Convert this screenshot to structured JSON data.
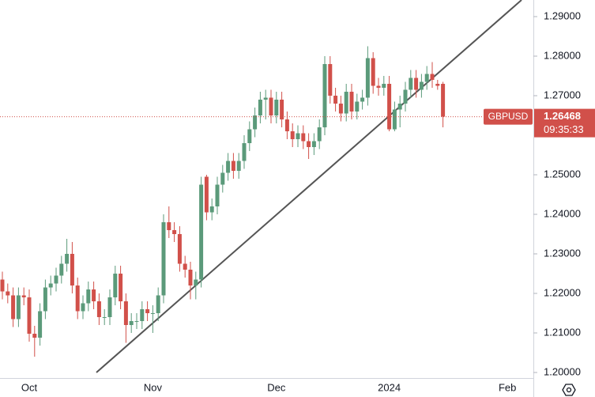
{
  "chart_data": {
    "type": "candlestick",
    "symbol": "GBPUSD",
    "last_price": 1.26468,
    "countdown": "09:35:33",
    "up_color": "#5b9a7a",
    "down_color": "#d1504a",
    "categories": [
      null,
      null,
      null,
      null,
      null,
      "Oct",
      null,
      null,
      null,
      null,
      null,
      null,
      null,
      null,
      null,
      null,
      null,
      null,
      null,
      null,
      null,
      null,
      null,
      null,
      null,
      null,
      null,
      null,
      "Nov",
      null,
      null,
      null,
      null,
      null,
      null,
      null,
      null,
      null,
      null,
      null,
      null,
      null,
      null,
      null,
      null,
      null,
      null,
      null,
      null,
      null,
      null,
      "Dec",
      null,
      null,
      null,
      null,
      null,
      null,
      null,
      null,
      null,
      null,
      null,
      null,
      null,
      null,
      null,
      null,
      null,
      null,
      null,
      null,
      "2024",
      null,
      null,
      null,
      null,
      null,
      null,
      null,
      null,
      null,
      null,
      null,
      null,
      null,
      null,
      null,
      null,
      null,
      null,
      null,
      null,
      null,
      "Feb"
    ],
    "open": [
      1.2235,
      1.2205,
      1.2195,
      1.2135,
      1.2195,
      1.219,
      1.2098,
      1.2088,
      1.2155,
      1.2215,
      1.2225,
      1.2245,
      1.2275,
      1.23,
      1.222,
      1.2155,
      1.2175,
      1.221,
      1.218,
      1.214,
      1.214,
      1.219,
      1.225,
      1.218,
      1.212,
      1.213,
      1.213,
      1.216,
      1.215,
      1.215,
      1.2195,
      1.238,
      1.236,
      1.235,
      1.2275,
      1.226,
      1.222,
      1.2235,
      1.2495,
      1.2405,
      1.242,
      1.2475,
      1.2505,
      1.2535,
      1.251,
      1.2535,
      1.258,
      1.2615,
      1.265,
      1.269,
      1.2695,
      1.265,
      1.269,
      1.264,
      1.261,
      1.259,
      1.2605,
      1.2585,
      1.257,
      1.2585,
      1.262,
      1.278,
      1.27,
      1.268,
      1.2655,
      1.271,
      1.266,
      1.2685,
      1.2695,
      1.2795,
      1.2725,
      1.272,
      1.273,
      1.2615,
      1.2665,
      1.268,
      1.2715,
      1.2745,
      1.2715,
      1.2735,
      1.2755,
      1.273,
      1.273,
      null,
      null,
      null,
      null,
      null,
      null,
      null,
      null,
      null,
      null,
      null,
      null
    ],
    "high": [
      1.2255,
      1.2225,
      1.2215,
      1.2215,
      1.2215,
      1.221,
      1.2118,
      1.2175,
      1.2235,
      1.2245,
      1.2265,
      1.2295,
      1.2338,
      1.233,
      1.224,
      1.2195,
      1.223,
      1.223,
      1.22,
      1.216,
      1.221,
      1.227,
      1.227,
      1.22,
      1.215,
      1.215,
      1.218,
      1.218,
      1.217,
      1.2215,
      1.24,
      1.242,
      1.238,
      1.237,
      1.2295,
      1.228,
      1.2255,
      1.2495,
      1.25,
      1.244,
      1.2495,
      1.2525,
      1.2555,
      1.2555,
      1.2555,
      1.26,
      1.2635,
      1.267,
      1.271,
      1.2715,
      1.2715,
      1.271,
      1.271,
      1.266,
      1.263,
      1.2625,
      1.2625,
      1.2605,
      1.2605,
      1.264,
      1.28,
      1.28,
      1.272,
      1.27,
      1.273,
      1.273,
      1.2705,
      1.2715,
      1.2825,
      1.281,
      1.2745,
      1.275,
      1.275,
      1.2685,
      1.27,
      1.2735,
      1.2765,
      1.2765,
      1.2755,
      1.2775,
      1.2785,
      1.274,
      1.2735,
      null,
      null,
      null,
      null,
      null,
      null,
      null,
      null,
      null,
      null,
      null,
      null
    ],
    "low": [
      1.2185,
      1.2175,
      1.2115,
      1.2115,
      1.217,
      1.2078,
      1.204,
      1.2068,
      1.2135,
      1.2195,
      1.2205,
      1.2225,
      1.2255,
      1.22,
      1.2135,
      1.2135,
      1.2155,
      1.216,
      1.212,
      1.212,
      1.212,
      1.217,
      1.216,
      1.2075,
      1.21,
      1.211,
      1.211,
      1.213,
      1.21,
      1.213,
      1.2175,
      1.234,
      1.233,
      1.2255,
      1.224,
      1.2185,
      1.2185,
      1.2215,
      1.2385,
      1.2385,
      1.24,
      1.2455,
      1.2485,
      1.249,
      1.249,
      1.2515,
      1.256,
      1.2595,
      1.263,
      1.264,
      1.263,
      1.263,
      1.262,
      1.259,
      1.257,
      1.257,
      1.2565,
      1.254,
      1.255,
      1.2565,
      1.26,
      1.268,
      1.266,
      1.2635,
      1.2635,
      1.264,
      1.264,
      1.2665,
      1.2675,
      1.2705,
      1.27,
      1.27,
      1.261,
      1.261,
      1.262,
      1.266,
      1.2695,
      1.2695,
      1.2695,
      1.2715,
      1.272,
      1.2715,
      1.262,
      null,
      null,
      null,
      null,
      null,
      null,
      null,
      null,
      null,
      null,
      null,
      null
    ],
    "close": [
      1.2205,
      1.2195,
      1.2135,
      1.2195,
      1.219,
      1.2098,
      1.2088,
      1.2155,
      1.2215,
      1.2225,
      1.2245,
      1.2275,
      1.23,
      1.222,
      1.2155,
      1.2175,
      1.221,
      1.218,
      1.214,
      1.214,
      1.219,
      1.225,
      1.218,
      1.212,
      1.213,
      1.213,
      1.216,
      1.215,
      1.215,
      1.2195,
      1.238,
      1.236,
      1.235,
      1.2275,
      1.226,
      1.222,
      1.2235,
      1.2475,
      1.2405,
      1.242,
      1.2475,
      1.2505,
      1.2535,
      1.251,
      1.2535,
      1.258,
      1.2615,
      1.265,
      1.269,
      1.2695,
      1.265,
      1.269,
      1.264,
      1.261,
      1.259,
      1.2605,
      1.2585,
      1.257,
      1.2585,
      1.262,
      1.278,
      1.27,
      1.268,
      1.2655,
      1.271,
      1.266,
      1.2685,
      1.2695,
      1.2795,
      1.2725,
      1.272,
      1.273,
      1.2615,
      1.2665,
      1.268,
      1.2715,
      1.2745,
      1.2715,
      1.2735,
      1.2755,
      1.274,
      1.2725,
      1.2647,
      null,
      null,
      null,
      null,
      null,
      null,
      null,
      null,
      null,
      null,
      null,
      null
    ],
    "ylim": [
      1.1986,
      1.2942
    ],
    "yticks": [
      {
        "value": 1.29,
        "label": "1.29000"
      },
      {
        "value": 1.28,
        "label": "1.28000"
      },
      {
        "value": 1.27,
        "label": "1.27000"
      },
      {
        "value": 1.25,
        "label": "1.25000"
      },
      {
        "value": 1.24,
        "label": "1.24000"
      },
      {
        "value": 1.23,
        "label": "1.23000"
      },
      {
        "value": 1.22,
        "label": "1.22000"
      },
      {
        "value": 1.21,
        "label": "1.21000"
      },
      {
        "value": 1.2,
        "label": "1.20000"
      }
    ]
  }
}
